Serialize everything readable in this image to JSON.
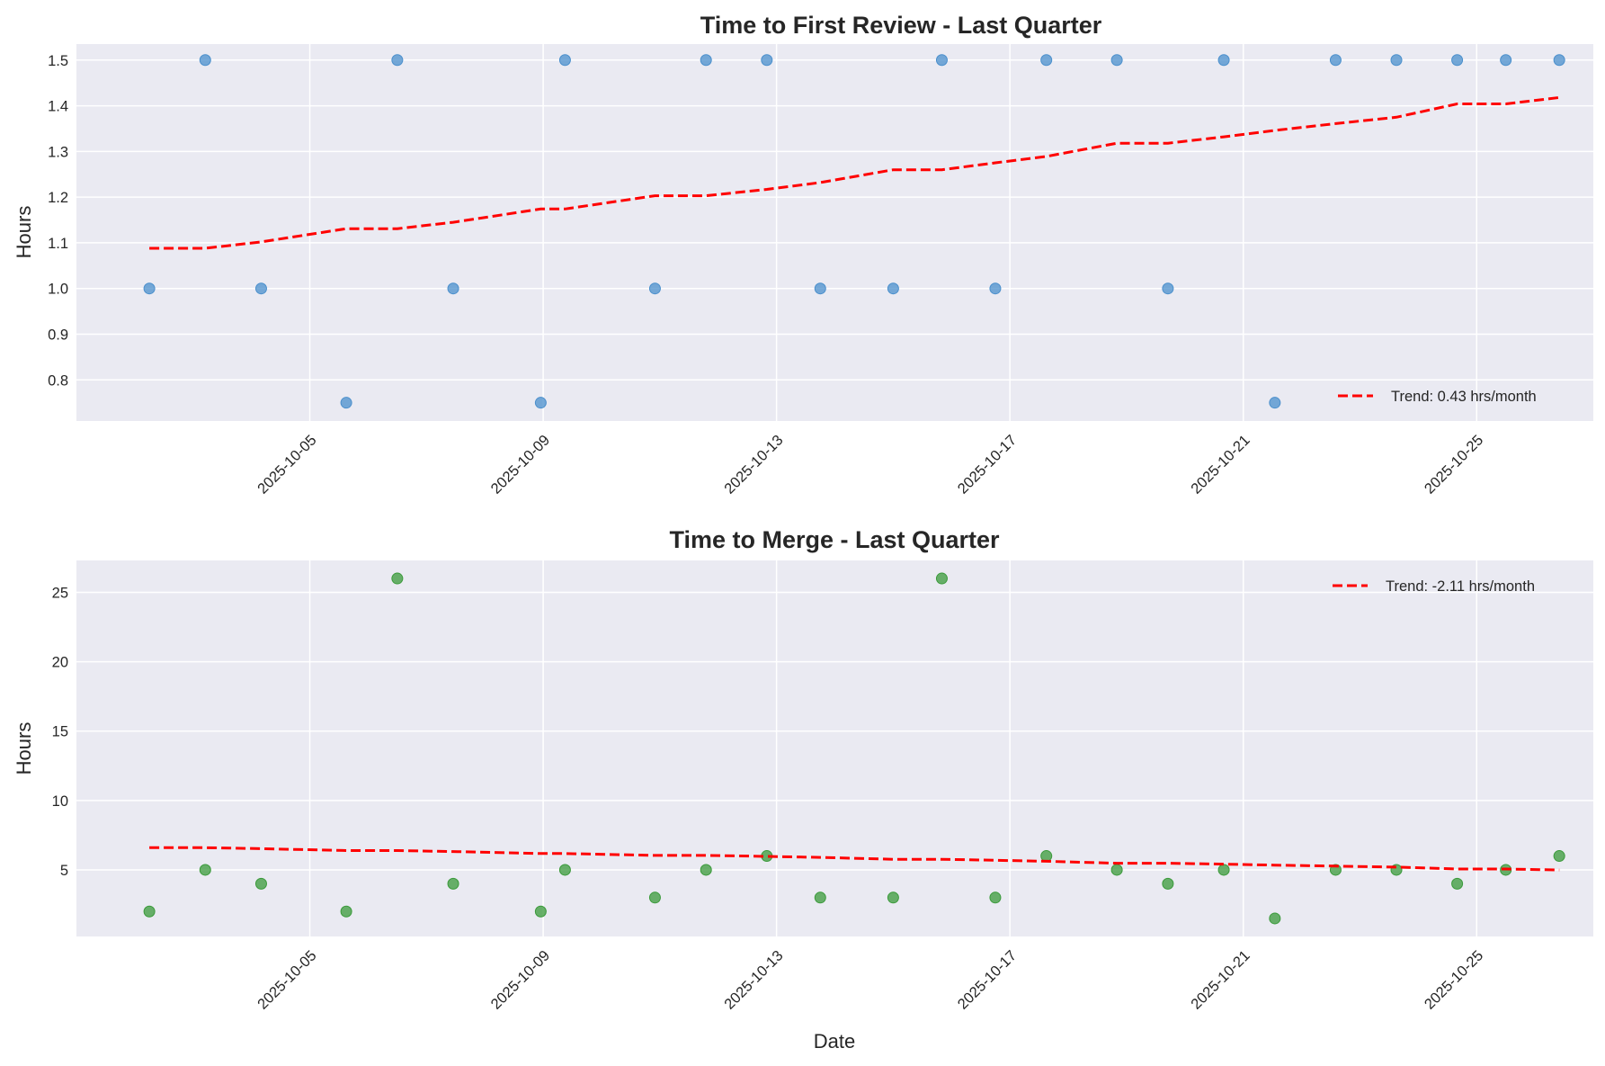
{
  "chart_data": [
    {
      "type": "scatter",
      "title": "Time to First Review - Last Quarter",
      "xlabel": "",
      "ylabel": "Hours",
      "xlim": [
        "2025-10-01",
        "2025-10-27"
      ],
      "ylim": [
        0.71,
        1.535
      ],
      "yticks": [
        0.8,
        0.9,
        1.0,
        1.1,
        1.2,
        1.3,
        1.4,
        1.5
      ],
      "xticks": [
        "2025-10-05",
        "2025-10-09",
        "2025-10-13",
        "2025-10-17",
        "2025-10-21",
        "2025-10-25"
      ],
      "grid": true,
      "legend_position": "bottom-right",
      "colors": {
        "points": "#4a8fcc",
        "trend": "#ff0000"
      },
      "series": [
        {
          "kind": "points",
          "x": [
            "2025-10-02 06:00",
            "2025-10-03 05:00",
            "2025-10-04 04:00",
            "2025-10-05 15:00",
            "2025-10-06 12:00",
            "2025-10-07 11:00",
            "2025-10-08 23:00",
            "2025-10-09 09:00",
            "2025-10-10 22:00",
            "2025-10-11 19:00",
            "2025-10-12 20:00",
            "2025-10-13 18:00",
            "2025-10-15 00:00",
            "2025-10-15 20:00",
            "2025-10-16 18:00",
            "2025-10-17 15:00",
            "2025-10-18 20:00",
            "2025-10-19 17:00",
            "2025-10-20 16:00",
            "2025-10-21 13:00",
            "2025-10-22 14:00",
            "2025-10-23 15:00",
            "2025-10-24 16:00",
            "2025-10-25 12:00",
            "2025-10-26 10:00"
          ],
          "y": [
            1.0,
            1.5,
            1.0,
            0.75,
            1.5,
            1.0,
            0.75,
            1.5,
            1.0,
            1.5,
            1.5,
            1.0,
            1.0,
            1.5,
            1.0,
            1.5,
            1.5,
            1.0,
            1.5,
            0.75,
            1.5,
            1.5,
            1.5,
            1.5,
            1.5
          ]
        },
        {
          "kind": "trend",
          "name": "Trend: 0.43 hrs/month",
          "x": [
            "2025-10-02 06:00",
            "2025-10-03 05:00",
            "2025-10-04 04:00",
            "2025-10-05 15:00",
            "2025-10-06 12:00",
            "2025-10-07 11:00",
            "2025-10-08 23:00",
            "2025-10-09 09:00",
            "2025-10-10 22:00",
            "2025-10-11 19:00",
            "2025-10-12 20:00",
            "2025-10-13 18:00",
            "2025-10-15 00:00",
            "2025-10-15 20:00",
            "2025-10-16 18:00",
            "2025-10-17 15:00",
            "2025-10-18 20:00",
            "2025-10-19 17:00",
            "2025-10-20 16:00",
            "2025-10-21 13:00",
            "2025-10-22 14:00",
            "2025-10-23 15:00",
            "2025-10-24 16:00",
            "2025-10-25 12:00",
            "2025-10-26 10:00"
          ],
          "y": [
            1.088,
            1.088,
            1.102,
            1.131,
            1.131,
            1.145,
            1.174,
            1.174,
            1.203,
            1.203,
            1.217,
            1.232,
            1.26,
            1.26,
            1.275,
            1.289,
            1.318,
            1.318,
            1.332,
            1.346,
            1.361,
            1.375,
            1.404,
            1.404,
            1.418
          ]
        }
      ]
    },
    {
      "type": "scatter",
      "title": "Time to Merge - Last Quarter",
      "xlabel": "Date",
      "ylabel": "Hours",
      "xlim": [
        "2025-10-01",
        "2025-10-27"
      ],
      "ylim": [
        0.2,
        27.3
      ],
      "yticks": [
        5,
        10,
        15,
        20,
        25
      ],
      "xticks": [
        "2025-10-05",
        "2025-10-09",
        "2025-10-13",
        "2025-10-17",
        "2025-10-21",
        "2025-10-25"
      ],
      "grid": true,
      "legend_position": "top-right",
      "colors": {
        "points": "#3a9a3a",
        "trend": "#ff0000"
      },
      "series": [
        {
          "kind": "points",
          "x": [
            "2025-10-02 06:00",
            "2025-10-03 05:00",
            "2025-10-04 04:00",
            "2025-10-05 15:00",
            "2025-10-06 12:00",
            "2025-10-07 11:00",
            "2025-10-08 23:00",
            "2025-10-09 09:00",
            "2025-10-10 22:00",
            "2025-10-11 19:00",
            "2025-10-12 20:00",
            "2025-10-13 18:00",
            "2025-10-15 00:00",
            "2025-10-15 20:00",
            "2025-10-16 18:00",
            "2025-10-17 15:00",
            "2025-10-18 20:00",
            "2025-10-19 17:00",
            "2025-10-20 16:00",
            "2025-10-21 13:00",
            "2025-10-22 14:00",
            "2025-10-23 15:00",
            "2025-10-24 16:00",
            "2025-10-25 12:00",
            "2025-10-26 10:00"
          ],
          "y": [
            2,
            5,
            4,
            2,
            26,
            4,
            2,
            5,
            3,
            5,
            6,
            3,
            3,
            26,
            3,
            6,
            5,
            4,
            5,
            1.5,
            5,
            5,
            4,
            5,
            6
          ]
        },
        {
          "kind": "trend",
          "name": "Trend: -2.11 hrs/month",
          "x": [
            "2025-10-02 06:00",
            "2025-10-03 05:00",
            "2025-10-04 04:00",
            "2025-10-05 15:00",
            "2025-10-06 12:00",
            "2025-10-07 11:00",
            "2025-10-08 23:00",
            "2025-10-09 09:00",
            "2025-10-10 22:00",
            "2025-10-11 19:00",
            "2025-10-12 20:00",
            "2025-10-13 18:00",
            "2025-10-15 00:00",
            "2025-10-15 20:00",
            "2025-10-16 18:00",
            "2025-10-17 15:00",
            "2025-10-18 20:00",
            "2025-10-19 17:00",
            "2025-10-20 16:00",
            "2025-10-21 13:00",
            "2025-10-22 14:00",
            "2025-10-23 15:00",
            "2025-10-24 16:00",
            "2025-10-25 12:00",
            "2025-10-26 10:00"
          ],
          "y": [
            6.6,
            6.6,
            6.53,
            6.39,
            6.39,
            6.32,
            6.18,
            6.18,
            6.04,
            6.04,
            5.97,
            5.9,
            5.76,
            5.76,
            5.69,
            5.62,
            5.48,
            5.48,
            5.41,
            5.34,
            5.27,
            5.2,
            5.06,
            5.06,
            4.99
          ]
        }
      ]
    }
  ]
}
